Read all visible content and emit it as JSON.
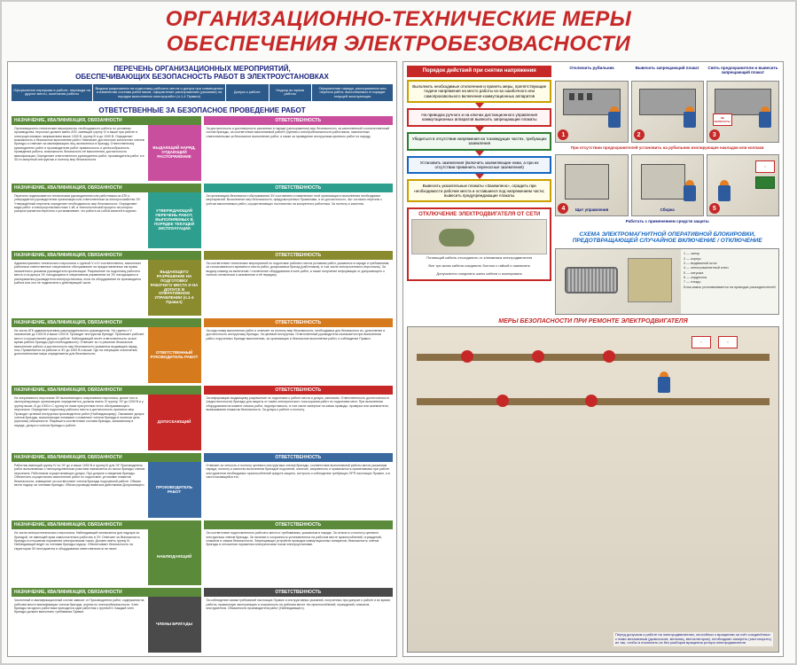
{
  "title_line1": "ОРГАНИЗАЦИОННО-ТЕХНИЧЕСКИЕ МЕРЫ",
  "title_line2": "ОБЕСПЕЧЕНИЯ ЭЛЕКТРОБЕЗОВАСНОСТИ",
  "colors": {
    "title": "#c62828",
    "header_blue": "#2c5a8a",
    "green_hdr": "#5a8a3a",
    "pink": "#c94f9e",
    "teal": "#2e9e8e",
    "olive": "#8a8a2e",
    "orange": "#d67a1e",
    "red": "#c62828",
    "blue": "#3a6aa0",
    "green2": "#5a8a3a",
    "dark": "#4a4a4a"
  },
  "left": {
    "subtitle": "ПЕРЕЧЕНЬ ОРГАНИЗАЦИОННЫХ МЕРОПРИЯТИЙ,\nОБЕСПЕЧИВАЮЩИХ БЕЗОПАСНОСТЬ РАБОТ В ЭЛЕКТРОУСТАНОВКАХ",
    "top_cells": [
      "Оформление перерыва в работе, перевода на другое место, окончания работы",
      "Выдача разрешения на подготовку рабочего места и допуск при совмещении и изменении состава работников, оформление распоряжения (указания) на порядок выполнения электроработ (п.1-4 Правил)",
      "Допуск к работе",
      "Надзор во время работы",
      "Оформление наряда, распоряжения или перечня работ, выполняемых в порядке текущей эксплуатации"
    ],
    "resp_title": "ОТВЕТСТВЕННЫЕ ЗА БЕЗОПАСНОЕ ПРОВЕДЕНИЕ РАБОТ",
    "roles": [
      {
        "hdr_a": "НАЗНАЧЕНИЕ, КВАЛИФИКАЦИЯ, ОБЯЗАННОСТИ",
        "tag": "ВЫДАЮЩИЙ НАРЯД, ОТДАЮЩИЙ РАСПОРЯЖЕНИЕ",
        "tag_color": "#c94f9e",
        "body_a": "Организационно-технические мероприятия, необходимость работы по условиям производства, персонал должен иметь АТК, имеющий группу IV и выше при работе в электроустановках напряжением выше 1000 В, группу III в до 1000 В. Определяет возможность и безопасное выполнение работ. Назначает достаточное количество членов бригады и отвечает за квалификацию лиц, включенных в бригаду. Ответственному руководителю работ и производителю работ правильность и целесообразность проведения работы, возможность безопасного её выполнения, достаточность квалификации. Определяет ответственного руководителя работ, производителя работ и в 30-ти минутный инструктаж и полноту мер безопасности.",
        "hdr_b": "ОТВЕТСТВЕННОСТЬ",
        "body_b": "За достаточность и достоверность указанных в наряде (распоряжении) мер безопасности, за качественный и количественный состав бригады, за соответствие выполняемой работе группам и электробезопасности работников, назначенных ответственными за безопасное выполнение работ, а также за проведение инструктажа целевого работ по наряду."
      },
      {
        "hdr_a": "НАЗНАЧЕНИЕ, КВАЛИФИКАЦИЯ, ОБЯЗАННОСТИ",
        "tag": "УТВЕРЖДАЮЩИЙ ПЕРЕЧЕНЬ РАБОТ, ВЫПОЛНЯЕМЫХ В ПОРЯДКЕ ТЕКУЩЕЙ ЭКСПЛУАТАЦИИ",
        "tag_color": "#2e9e8e",
        "body_a": "Перечень подписывается техническим руководителем или работником из АТК и утверждается руководителем организации или ответственным за электрохозяйство ЭУ. Утверждённый перечень определяет необходимость мер безопасности. Определяют виды работ и электроустановки ниже 1 кВ, в технологический процесс на которых распространяется перечень и устанавливает, что работа за собой записей в журнал.",
        "hdr_b": "ОТВЕТСТВЕННОСТЬ",
        "body_b": "За организацию безопасного обслуживания ЭУ состоянием и изменениях этой организации и выполнении необходимых мероприятий. Выполнение мер безопасности, предусмотренных Правилами, и их достаточность. Акт согласно перечню с учётом выполняемых работ, осуществляющих постоянство на конкретного работника. За полноту и качество."
      },
      {
        "hdr_a": "НАЗНАЧЕНИЕ, КВАЛИФИКАЦИЯ, ОБЯЗАННОСТИ",
        "tag": "ВЫДАЮЩЕГО РАЗРЕШЕНИЕ НА ПОДГОТОВКУ РАБОЧЕГО МЕСТА И НА ДОПУСК В ОПЕРАТИВНОМ УПРАВЛЕНИИ (п.1-4 Правил)",
        "tag_color": "#8a8a2e",
        "body_a": "Административно-технического персонала с группой V и IV соответственно, выполняют работники ответственные оперативное обслуживание на предоставленные им права письменного указания руководителя организации. Разрешение на подготовку рабочего места и на допуск ЭУ, находящихся в оперативном управлении на ЭУ, находящихся в распоряжении руководителя электроустановок, если на оборудовании не производится работа или оно не подключено к действующей части.",
        "hdr_b": "ОТВЕТСТВЕННОСТЬ",
        "body_b": "За соответствие технических мероприятий по подготовке рабочего места условиям работ, указанных в наряде и требованиям, за согласованность времени и места работ, допускаемых бригад (работников), в том числе электросетевого персонала). За выдачу команд на включение / отключение оборудования в зоне работ, а также получение информации от допускающего о полном отключении и заземлении и её передачу."
      },
      {
        "hdr_a": "НАЗНАЧЕНИЕ, КВАЛИФИКАЦИЯ, ОБЯЗАННОСТИ",
        "tag": "ОТВЕТСТВЕННЫЙ РУКОВОДИТЕЛЬ РАБОТ",
        "tag_color": "#d67a1e",
        "body_a": "Из числа АТК административно-распорядительного руководителя. У/р группы с V назначение до 1000 В и выше 1000 В. Проводит инструктаж бригаде. Принимает рабочее место и осуществляет допуск к работе. Наблюдающий несёт ответственность за все время работы бригады (при необходимости). Отвечает за то решение безопасное выполнение работы и достаточность мер безопасности указанных выдающим наряд, нлы. Применяется на работах в ЭУ до 1000 В и выше. Где на операциях отключения, дополнительные меры определяются для безопасности.",
        "hdr_b": "ОТВЕТСТВЕННОСТЬ",
        "body_b": "За подготовку выполнения работ и отвечает за полноту мер безопасности, необходимых для безопасного их, дополнение и достаточность инструктажу бригады. За целевой инструктаж. Ответственный руководитель назначается при выполнении работ, порученных бригаде выполнению, за организацию и безопасное выполнение работ, и соблюдение Правил."
      },
      {
        "hdr_a": "НАЗНАЧЕНИЕ, КВАЛИФИКАЦИЯ, ОБЯЗАННОСТИ",
        "tag": "ДОПУСКАЮЩИЙ",
        "tag_color": "#c62828",
        "body_a": "Из оперативного персонала ЭУ выполняющего оперативное персонала, кроме того в эксплуатирующих организациях определяется, должны иметь IV группу, ЭУ до 1000 В и у группу выше, В до 1000 и С группу не ниже присутствии этого обслуживающего персонала. Определяет подготовку рабочего места и достаточность принятых мер. Проводит целевой инструктаж производители работ (Наблюдающему). Оказывает допуск членов бригады, выполняющих понимают и изменяют членов бригады в понятом цель (причины) обязанности. Разрешить соответствие состава бригады, записанному в наряде, допуск и членов бригады к работе.",
        "hdr_b": "ОТВЕТСТВЕННОСТЬ",
        "body_b": "За информацию выдающему разрешение по подготовке к работе места и допуск, запланию. Ответственность достаточнности (недостаточности) бригады для защиты от помех электрического тока корания работ по подготовке мест. При выполнении оборудования на момент начала работ, недопустимость, в том числе запертые на замок приводы, проверки или заземлители, вывешивания плакатов безопасности. За допуск к работе и полноту."
      },
      {
        "hdr_a": "НАЗНАЧЕНИЕ, КВАЛИФИКАЦИЯ, ОБЯЗАННОСТИ",
        "tag": "ПРОИЗВОДИТЕЛЬ РАБОТ",
        "tag_color": "#3a6aa0",
        "body_a": "Работник имеющий группу IV по ЭУ до и выше 1000 В и группу III для ЭУ Производитель работ выполняемых с непосредственным участием назначается из числа бригады членов персонала. Работников осуществляющих допуск. При допуске к сведению бригады. Обеспечить осуществлять выполнение работ по подготовке, установке плакатов безопасности, извещение за соответствие членов бригады поручаемой работе. Обязан вести надзор за членами бригады. Обязан руководствоваться действиями Допускающего.",
        "hdr_b": "ОТВЕТСТВЕННОСТЬ",
        "body_b": "Отвечает за четкость и полноту целевого инструктажа членов бригады, соответствие выполняемой работы места указаниям наряда, полноту и качество выполнения бригадой поручений, наличие, исправность и правильность применяемых при работе инструментов необходимых приспособлений средств защиты, контроль и соблюдение требующих ПРП настоящих Правил, а в части касающейся его."
      },
      {
        "hdr_a": "НАЗНАЧЕНИЕ, КВАЛИФИКАЦИЯ, ОБЯЗАННОСТИ",
        "tag": "НАБЛЮДАЮЩИЙ",
        "tag_color": "#5a8a3a",
        "body_a": "Из числа электротехнического персонала. Наблюдающий назначается для надзора за бригадой, не имеющей прав самостоятельно работать в ЭУ. Отвечает за безопасность бригады в отношении поражения электрическим током. Должен иметь группу III. Наблюдающий ведет за членами бригады надзор. Обеспечивает безопасность на территории ЭУ инструмента и оборудования ответственности не несет.",
        "hdr_b": "ОТВЕТСТВЕННОСТЬ",
        "body_b": "За соответствие подготовленного рабочего места и требованиям, указанным в наряде. За четкость и полноту целевого инструктажа членов бригады. За наличие и сохранность установленных на рабочем месте приспособлений, ограждений, плакатов и знаков безопасности. Запрещающих устройств проводов коммутационных аппаратов; безопасность членов бригады в отношении поражения электрическим током электроустановки."
      },
      {
        "hdr_a": "НАЗНАЧЕНИЕ, КВАЛИФИКАЦИЯ, ОБЯЗАННОСТИ",
        "tag": "ЧЛЕНЫ БРИГАДЫ",
        "tag_color": "#4a4a4a",
        "body_a": "Численный и квалификационный состав зависит от Производителя работ, содержания на рабочем месте квалификации членов бригады, группы по электробезопасности. Член бригады на одного работника приходится один работник с группой II. Каждый член бригады должен выполнять требования Правил.",
        "hdr_b": "ОТВЕТСТВЕННОСТЬ",
        "body_b": "За соблюдение самим требований настоящих Правил и инструктивных указаний, полученных при допуске к работе и во время работы, правильную эксплуатацию и сохранность на рабочем месте тех приспособлений, ограждений, плакатов, инструментов. Обязанности производителя работ (Наблюдающего)."
      }
    ]
  },
  "right": {
    "proc_title": "Порядок действий при снятии напряжения",
    "steps": [
      {
        "cls": "proc-yellow",
        "text": "Выполнить необходимые отключения и принять меры, препятствующие подаче напряжения на место работы из-за ошибочного или самопроизвольного включения коммутационных аппаратов"
      },
      {
        "cls": "proc-red",
        "text": "На приводах ручного и на ключах дистанционного управления коммутационных аппаратов вывесить запрещающие плакаты"
      },
      {
        "cls": "proc-green",
        "text": "Убедиться в отсутствии напряжения на токоведущих частях, требующих заземления"
      },
      {
        "cls": "proc-blue",
        "text": "Установить заземления (включить заземляющие ножи, а при их отсутствии применить переносные заземления)"
      },
      {
        "cls": "proc-yellow",
        "text": "Вывесить указательные плакаты «Заземлено», оградить при необходимости рабочие места и оставшиеся под напряжением части; вывесить предупреждающие плакаты"
      }
    ],
    "illus_caps": [
      "Отключить рубильник",
      "Вывесить запрещающий плакат",
      "Снять предохранители и вывесить запрещающий плакат",
      "",
      "",
      "НЕ ВКЛЮЧАТЬ!",
      "При отсутствии предохранителей установить на рубильник изолирующие накладки или колпаки",
      "Щит управления",
      "Сборка",
      "Работать с применением средств защиты"
    ],
    "motor_title": "ОТКЛЮЧЕНИЕ ЭЛЕКТРОДВИГАТЕЛЯ ОТ СЕТИ",
    "motor_texts": [
      "Питающий кабель отсоединить от клеммника электродвигателя",
      "Все три жилы кабеля соединить болтом с гайкой и заземлить",
      "Допускается соединить жилы кабеля и изолировать"
    ],
    "schema_title": "СХЕМА ЭЛЕКТРОМАГНИТНОЙ ОПЕРАТИВНОЙ БЛОКИРОВКИ, ПРЕДОТВРАЩАЮЩЕЙ СЛУЧАЙНОЕ ВКЛЮЧЕНИЕ / ОТКЛЮЧЕНИЕ",
    "schema_legend": "1 — запор\n2 — корпус\n3 — выдвижной шток\n4 — электромагнитный ключ\n5 — катушка\n6 — сердечник\n7 — гнездо\nБлок-замок устанавливается на приводах разъединителей",
    "safety_title": "МЕРЫ БЕЗОПАСНОСТИ ПРИ РЕМОНТЕ ЭЛЕКТРОДВИГАТЕЛЯ",
    "safety_text": "Перед допуском к работе на электродвигателях, способных к вращению за счёт соединённых с ними механизмов (дымососов, мельниц, вентиляторов), необходимо запереть (застопорить) их так, чтобы и отключить их без разборки вращения ротора электродвигателя"
  }
}
